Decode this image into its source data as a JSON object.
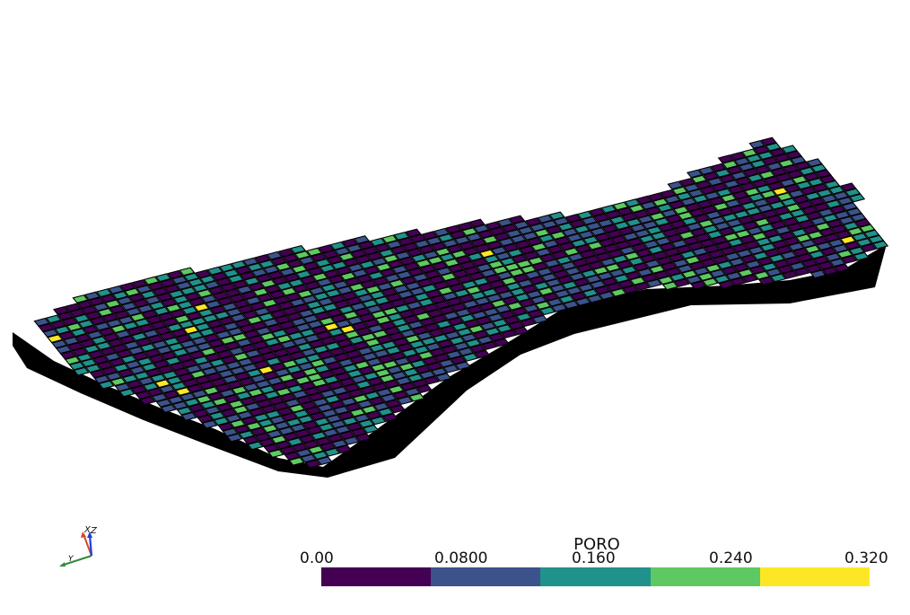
{
  "scalar_bar": {
    "title": "PORO",
    "ticks": [
      "0.00",
      "0.0800",
      "0.160",
      "0.240",
      "0.320"
    ],
    "range": [
      0.0,
      0.32
    ],
    "colors": [
      "#440154",
      "#3b528b",
      "#21918c",
      "#5ec962",
      "#fde725"
    ]
  },
  "orientation_axes": {
    "labels": {
      "x": "X",
      "y": "Y",
      "z": "Z"
    },
    "colors": {
      "x": "#d2452b",
      "y": "#2e8b3a",
      "z": "#1f3fd8"
    }
  },
  "mesh": {
    "description_field": "PORO",
    "background": "#ffffff",
    "edge_color": "#000000",
    "side_color": "#000000",
    "cell_fraction": {
      "dark_purple": 0.44,
      "blue": 0.24,
      "teal": 0.2,
      "green": 0.11,
      "yellow": 0.01
    }
  }
}
